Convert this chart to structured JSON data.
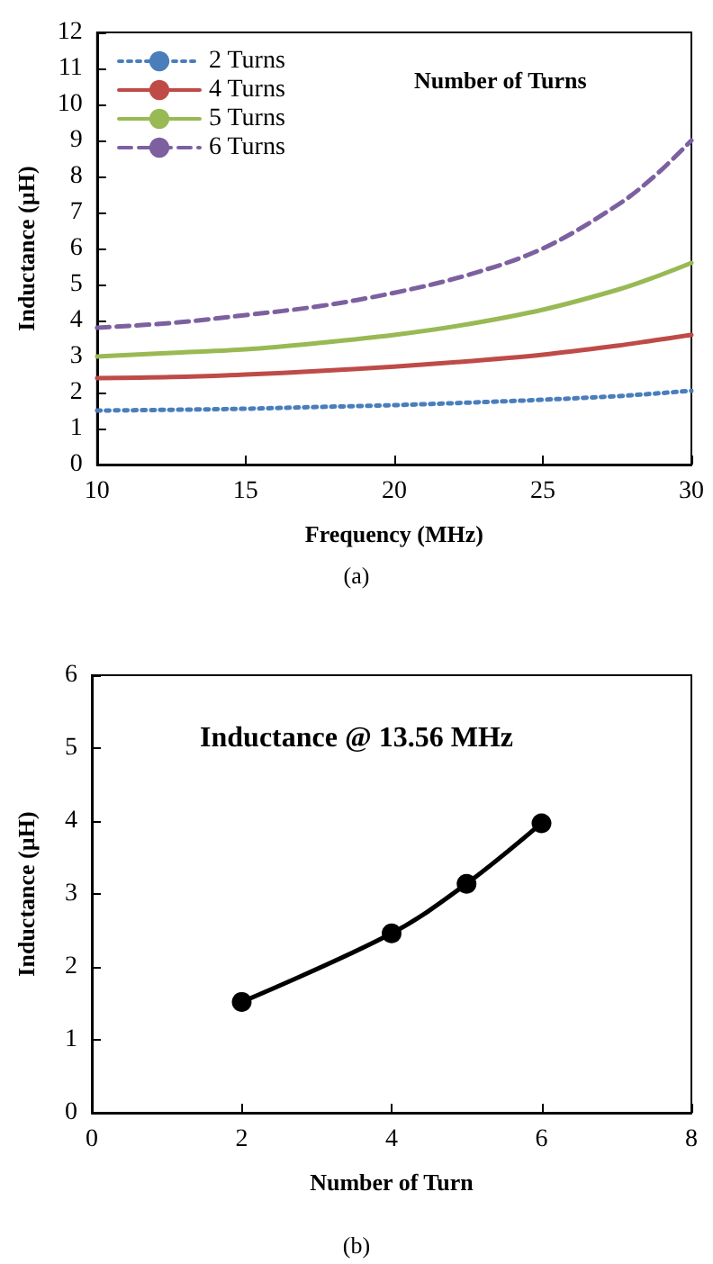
{
  "chart_data": [
    {
      "type": "line",
      "xlabel": "Frequency (MHz)",
      "ylabel": "Inductance (µH)",
      "legend_title": "Number of Turns",
      "annotations": [
        "(a)"
      ],
      "x": [
        10,
        12.5,
        15,
        17.5,
        20,
        22.5,
        25,
        27.5,
        28.75,
        30
      ],
      "series": [
        {
          "name": "2 Turns",
          "color": "#4a7ebb",
          "line_style": "dotted",
          "values": [
            1.5,
            1.52,
            1.55,
            1.6,
            1.65,
            1.72,
            1.8,
            1.9,
            1.97,
            2.05
          ]
        },
        {
          "name": "4 Turns",
          "color": "#be4b48",
          "line_style": "solid",
          "values": [
            2.4,
            2.43,
            2.5,
            2.6,
            2.72,
            2.87,
            3.05,
            3.3,
            3.45,
            3.6
          ]
        },
        {
          "name": "5 Turns",
          "color": "#98b954",
          "line_style": "solid",
          "values": [
            3.0,
            3.1,
            3.2,
            3.38,
            3.6,
            3.9,
            4.3,
            4.85,
            5.2,
            5.6
          ]
        },
        {
          "name": "6 Turns",
          "color": "#7d60a0",
          "line_style": "dashed",
          "values": [
            3.8,
            3.93,
            4.15,
            4.4,
            4.77,
            5.27,
            6.0,
            7.2,
            8.0,
            9.0
          ]
        }
      ],
      "xlim": [
        10,
        30
      ],
      "xticks": [
        10,
        15,
        20,
        25,
        30
      ],
      "ylim": [
        0,
        12
      ],
      "yticks": [
        0,
        1,
        2,
        3,
        4,
        5,
        6,
        7,
        8,
        9,
        10,
        11,
        12
      ],
      "legend": "top left",
      "marker": "none"
    },
    {
      "type": "line",
      "title": "Inductance @ 13.56 MHz",
      "xlabel": "Number of Turn",
      "ylabel": "Inductance (µH)",
      "annotations": [
        "(b)"
      ],
      "x": [
        2,
        4,
        5,
        6
      ],
      "series": [
        {
          "color": "#000000",
          "values": [
            1.52,
            2.46,
            3.14,
            3.97
          ]
        }
      ],
      "xlim": [
        0,
        8
      ],
      "xticks": [
        0,
        2,
        4,
        6,
        8
      ],
      "ylim": [
        0,
        6
      ],
      "yticks": [
        0,
        1,
        2,
        3,
        4,
        5,
        6
      ],
      "marker": "circle",
      "line_style": "solid"
    }
  ]
}
